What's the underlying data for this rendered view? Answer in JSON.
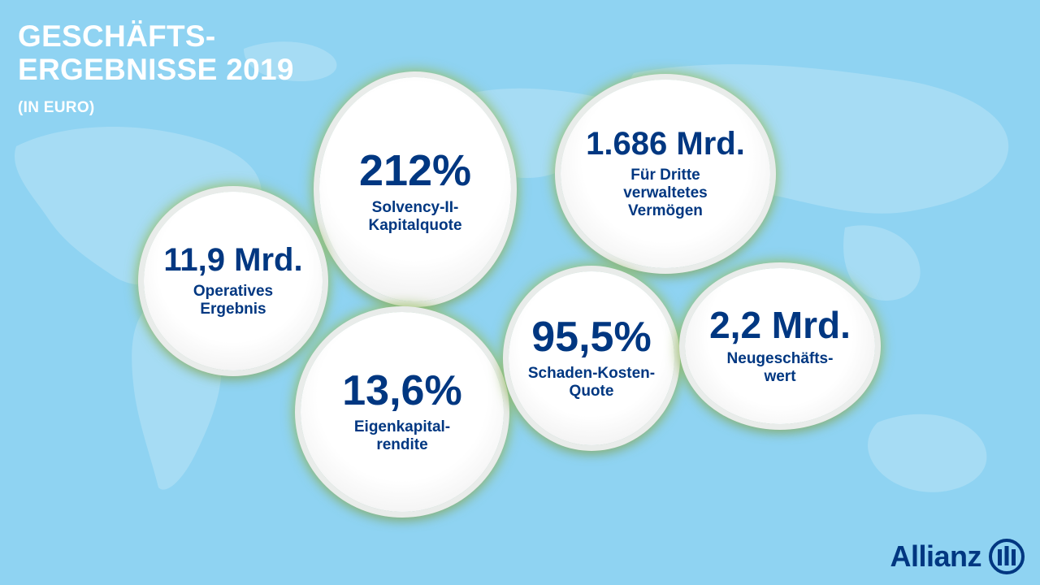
{
  "header": {
    "title_line1": "GESCHÄFTS-",
    "title_line2": "ERGEBNISSE 2019",
    "subtitle": "(IN EURO)"
  },
  "bubbles": [
    {
      "id": "solvency",
      "value": "212%",
      "label": [
        "Solvency-II-",
        "Kapitalquote"
      ]
    },
    {
      "id": "vermoegen",
      "value": "1.686 Mrd.",
      "label": [
        "Für Dritte",
        "verwaltetes",
        "Vermögen"
      ]
    },
    {
      "id": "operativ",
      "value": "11,9 Mrd.",
      "label": [
        "Operatives",
        "Ergebnis"
      ]
    },
    {
      "id": "eigenkap",
      "value": "13,6%",
      "label": [
        "Eigenkapital-",
        "rendite"
      ]
    },
    {
      "id": "schaden",
      "value": "95,5%",
      "label": [
        "Schaden-Kosten-",
        "Quote"
      ]
    },
    {
      "id": "neu",
      "value": "2,2 Mrd.",
      "label": [
        "Neugeschäfts-",
        "wert"
      ]
    }
  ],
  "brand": {
    "name": "Allianz",
    "logo_icon": "allianz-eagle-pillars-icon",
    "color": "#003781",
    "background": "#8fd3f2"
  }
}
